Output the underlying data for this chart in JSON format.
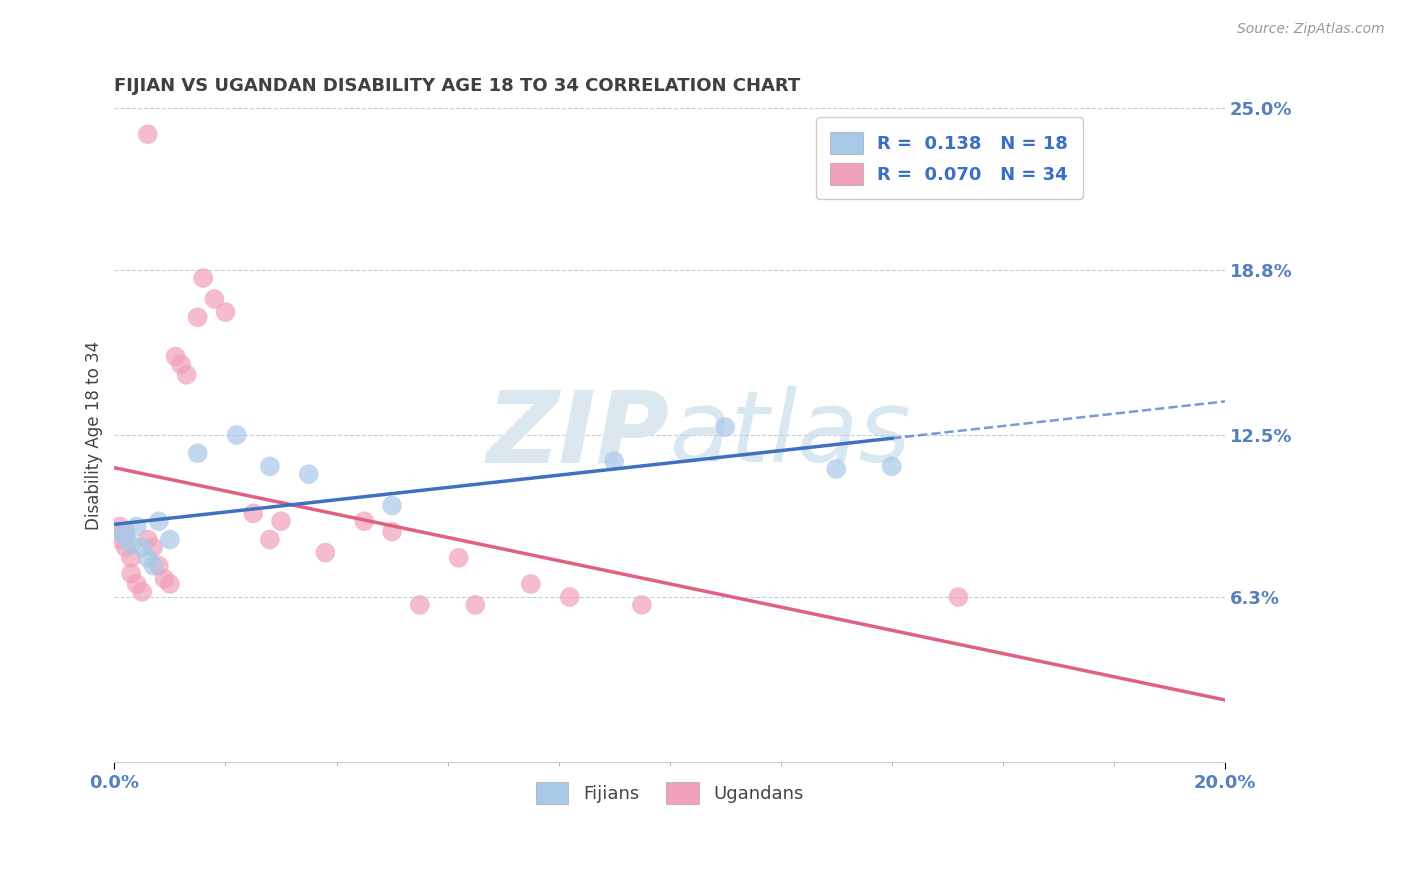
{
  "title": "FIJIAN VS UGANDAN DISABILITY AGE 18 TO 34 CORRELATION CHART",
  "source": "Source: ZipAtlas.com",
  "ylabel": "Disability Age 18 to 34",
  "xlim": [
    0.0,
    0.2
  ],
  "ylim": [
    0.0,
    0.25
  ],
  "ytick_vals": [
    0.063,
    0.125,
    0.188,
    0.25
  ],
  "ytick_labels": [
    "6.3%",
    "12.5%",
    "18.8%",
    "25.0%"
  ],
  "xtick_vals": [
    0.0,
    0.2
  ],
  "xtick_labels": [
    "0.0%",
    "20.0%"
  ],
  "fijian_color": "#A8C8E8",
  "ugandan_color": "#F0A0B8",
  "fijian_line_color": "#4070C0",
  "ugandan_line_color": "#E06080",
  "background_color": "#FFFFFF",
  "grid_color": "#C0D0E0",
  "title_color": "#404040",
  "axis_tick_color": "#5580BB",
  "legend_fijian_patch_color": "#A8C8E8",
  "legend_ugandan_patch_color": "#F0A0B8",
  "watermark_color": "#DCE8F0",
  "fijian_x": [
    0.001,
    0.002,
    0.003,
    0.004,
    0.005,
    0.006,
    0.007,
    0.008,
    0.009,
    0.012,
    0.015,
    0.022,
    0.028,
    0.035,
    0.05,
    0.09,
    0.11,
    0.14
  ],
  "fijian_y": [
    0.088,
    0.085,
    0.083,
    0.09,
    0.082,
    0.078,
    0.075,
    0.092,
    0.085,
    0.115,
    0.125,
    0.115,
    0.112,
    0.11,
    0.098,
    0.115,
    0.13,
    0.11
  ],
  "ugandan_x": [
    0.001,
    0.001,
    0.002,
    0.002,
    0.003,
    0.003,
    0.004,
    0.005,
    0.005,
    0.006,
    0.007,
    0.008,
    0.009,
    0.01,
    0.011,
    0.012,
    0.015,
    0.018,
    0.02,
    0.025,
    0.028,
    0.03,
    0.038,
    0.045,
    0.05,
    0.055,
    0.06,
    0.065,
    0.075,
    0.08,
    0.1,
    0.105,
    0.15,
    0.005
  ],
  "ugandan_y": [
    0.085,
    0.09,
    0.082,
    0.088,
    0.078,
    0.072,
    0.068,
    0.065,
    0.092,
    0.085,
    0.082,
    0.075,
    0.07,
    0.068,
    0.155,
    0.152,
    0.168,
    0.178,
    0.173,
    0.095,
    0.085,
    0.092,
    0.08,
    0.095,
    0.09,
    0.06,
    0.08,
    0.075,
    0.068,
    0.063,
    0.063,
    0.05,
    0.063,
    0.24
  ]
}
